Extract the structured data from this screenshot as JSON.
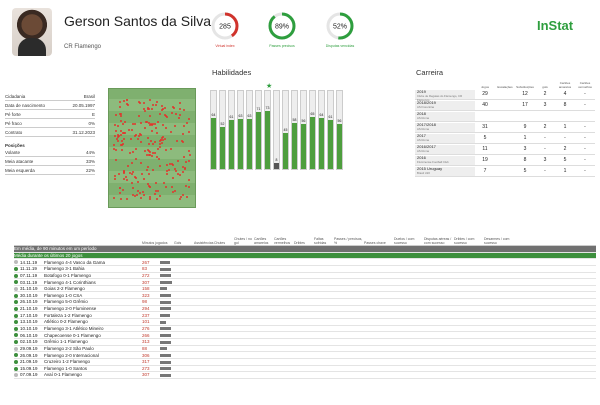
{
  "player": {
    "name": "Gerson Santos da Silva",
    "team": "CR Flamengo"
  },
  "brand": "InStat",
  "metrics": [
    {
      "value": "285",
      "label": "Virtual index",
      "fraction": 0.4,
      "color": "#d0332c"
    },
    {
      "value": "89%",
      "label": "Passes precisos",
      "fraction": 0.89,
      "color": "#2e9e3e"
    },
    {
      "value": "52%",
      "label": "Disputas vencidas",
      "fraction": 0.52,
      "color": "#2e9e3e"
    }
  ],
  "info": {
    "rows": [
      {
        "k": "Cidadania",
        "v": "Brasil"
      },
      {
        "k": "Data de nascimento",
        "v": "20.05.1997"
      },
      {
        "k": "Pé forte",
        "v": "E"
      },
      {
        "k": "Pé fraco",
        "v": "0%"
      },
      {
        "k": "Contrato",
        "v": "31.12.2023"
      }
    ],
    "positions_title": "Posições",
    "positions": [
      {
        "k": "Volante",
        "v": "44%"
      },
      {
        "k": "Meia atacante",
        "v": "33%"
      },
      {
        "k": "Meia esquerda",
        "v": "22%"
      }
    ]
  },
  "skills": {
    "title": "Habilidades",
    "values": [
      64,
      52,
      61,
      63,
      63,
      71,
      73,
      8,
      45,
      58,
      56,
      65,
      64,
      61,
      56
    ]
  },
  "career": {
    "title": "Carreira",
    "headers": [
      "Jogos",
      "Escalações",
      "Substituições",
      "gols",
      "Cartões amarelos",
      "Cartões vermelhos"
    ],
    "rows": [
      {
        "season": "2019",
        "team": "Clube de Regatas do Flamengo, CR Flamengo",
        "cells": [
          "29",
          "",
          "12",
          "2",
          "4",
          "-"
        ]
      },
      {
        "season": "2018/2019",
        "team": "AS Fiorentina",
        "cells": [
          "40",
          "",
          "17",
          "3",
          "8",
          "-"
        ]
      },
      {
        "season": "2018",
        "team": "AS Roma",
        "cells": [
          "",
          "",
          "",
          "",
          "",
          ""
        ]
      },
      {
        "season": "2017/2018",
        "team": "AS Roma",
        "cells": [
          "31",
          "",
          "9",
          "2",
          "1",
          "-"
        ]
      },
      {
        "season": "2017",
        "team": "AS Roma",
        "cells": [
          "5",
          "",
          "1",
          "-",
          "-",
          "-"
        ]
      },
      {
        "season": "2016/2017",
        "team": "AS Roma",
        "cells": [
          "11",
          "",
          "3",
          "-",
          "2",
          "-"
        ]
      },
      {
        "season": "2016",
        "team": "Fluminense Football Club",
        "cells": [
          "19",
          "",
          "8",
          "3",
          "5",
          "-"
        ]
      },
      {
        "season": "2015 Uruguay",
        "team": "Brasil U20",
        "cells": [
          "7",
          "",
          "5",
          "-",
          "1",
          "-"
        ]
      }
    ]
  },
  "matches": {
    "avg_label": "Em média, de 90 minutos em um período",
    "avg_label2": "Média durante os últimos 20 jogos",
    "headers": [
      "Minutos jogados",
      "Gols",
      "Assistências",
      "Chutes",
      "Chutes / no gol",
      "Cartões amarelos",
      "Cartões vermelhos",
      "Dribles",
      "Faltas sofridas",
      "Passes / precisos, %",
      "Passes chave",
      "Duelos / com sucesso",
      "Disputas aéreas / com sucesso",
      "Dribles / com sucesso",
      "Desarmes / com sucesso"
    ],
    "rows": [
      {
        "date": "14.11.19",
        "dot": "#bbb",
        "match": "Flamengo 4-4 Vasco da Gama",
        "mins": "267",
        "bar": 0.8
      },
      {
        "date": "11.11.19",
        "dot": "#3d8f3d",
        "match": "Flamengo 3-1 Bahia",
        "mins": "83",
        "bar": 0.9
      },
      {
        "date": "07.11.19",
        "dot": "#3d8f3d",
        "match": "Botafogo 0-1 Flamengo",
        "mins": "272",
        "bar": 0.95
      },
      {
        "date": "03.11.19",
        "dot": "#3d8f3d",
        "match": "Flamengo 4-1 Corinthians",
        "mins": "307",
        "bar": 1.0
      },
      {
        "date": "31.10.19",
        "dot": "#bbb",
        "match": "Goias 2-2 Flamengo",
        "mins": "158",
        "bar": 0.6
      },
      {
        "date": "30.10.19",
        "dot": "#3d8f3d",
        "match": "Flamengo 1-0 CSA",
        "mins": "323",
        "bar": 0.95
      },
      {
        "date": "26.10.19",
        "dot": "#3d8f3d",
        "match": "Flamengo 5-0 Grêmio",
        "mins": "98",
        "bar": 0.9
      },
      {
        "date": "21.10.19",
        "dot": "#3d8f3d",
        "match": "Flamengo 2-0 Fluminense",
        "mins": "294",
        "bar": 0.9
      },
      {
        "date": "17.10.19",
        "dot": "#3d8f3d",
        "match": "Fortaleza 1-2 Flamengo",
        "mins": "237",
        "bar": 0.85
      },
      {
        "date": "13.10.19",
        "dot": "#3d8f3d",
        "match": "Atlético 0-2 Flamengo",
        "mins": "101",
        "bar": 0.5
      },
      {
        "date": "10.10.19",
        "dot": "#3d8f3d",
        "match": "Flamengo 3-1 Atlético Mineiro",
        "mins": "276",
        "bar": 0.9
      },
      {
        "date": "06.10.19",
        "dot": "#3d8f3d",
        "match": "Chapecoense 0-1 Flamengo",
        "mins": "266",
        "bar": 0.9
      },
      {
        "date": "02.10.19",
        "dot": "#3d8f3d",
        "match": "Grêmio 1-1 Flamengo",
        "mins": "313",
        "bar": 0.95
      },
      {
        "date": "29.09.19",
        "dot": "#bbb",
        "match": "Flamengo 2-2 São Paulo",
        "mins": "88",
        "bar": 0.6
      },
      {
        "date": "26.09.19",
        "dot": "#3d8f3d",
        "match": "Flamengo 2-0 Internacional",
        "mins": "306",
        "bar": 0.95
      },
      {
        "date": "21.09.19",
        "dot": "#3d8f3d",
        "match": "Cruzeiro 1-2 Flamengo",
        "mins": "317",
        "bar": 0.95
      },
      {
        "date": "15.09.19",
        "dot": "#3d8f3d",
        "match": "Flamengo 1-0 Santos",
        "mins": "273",
        "bar": 0.9
      },
      {
        "date": "07.09.19",
        "dot": "#bbb",
        "match": "Avaí 0-1 Flamengo",
        "mins": "307",
        "bar": 0.95
      }
    ]
  }
}
